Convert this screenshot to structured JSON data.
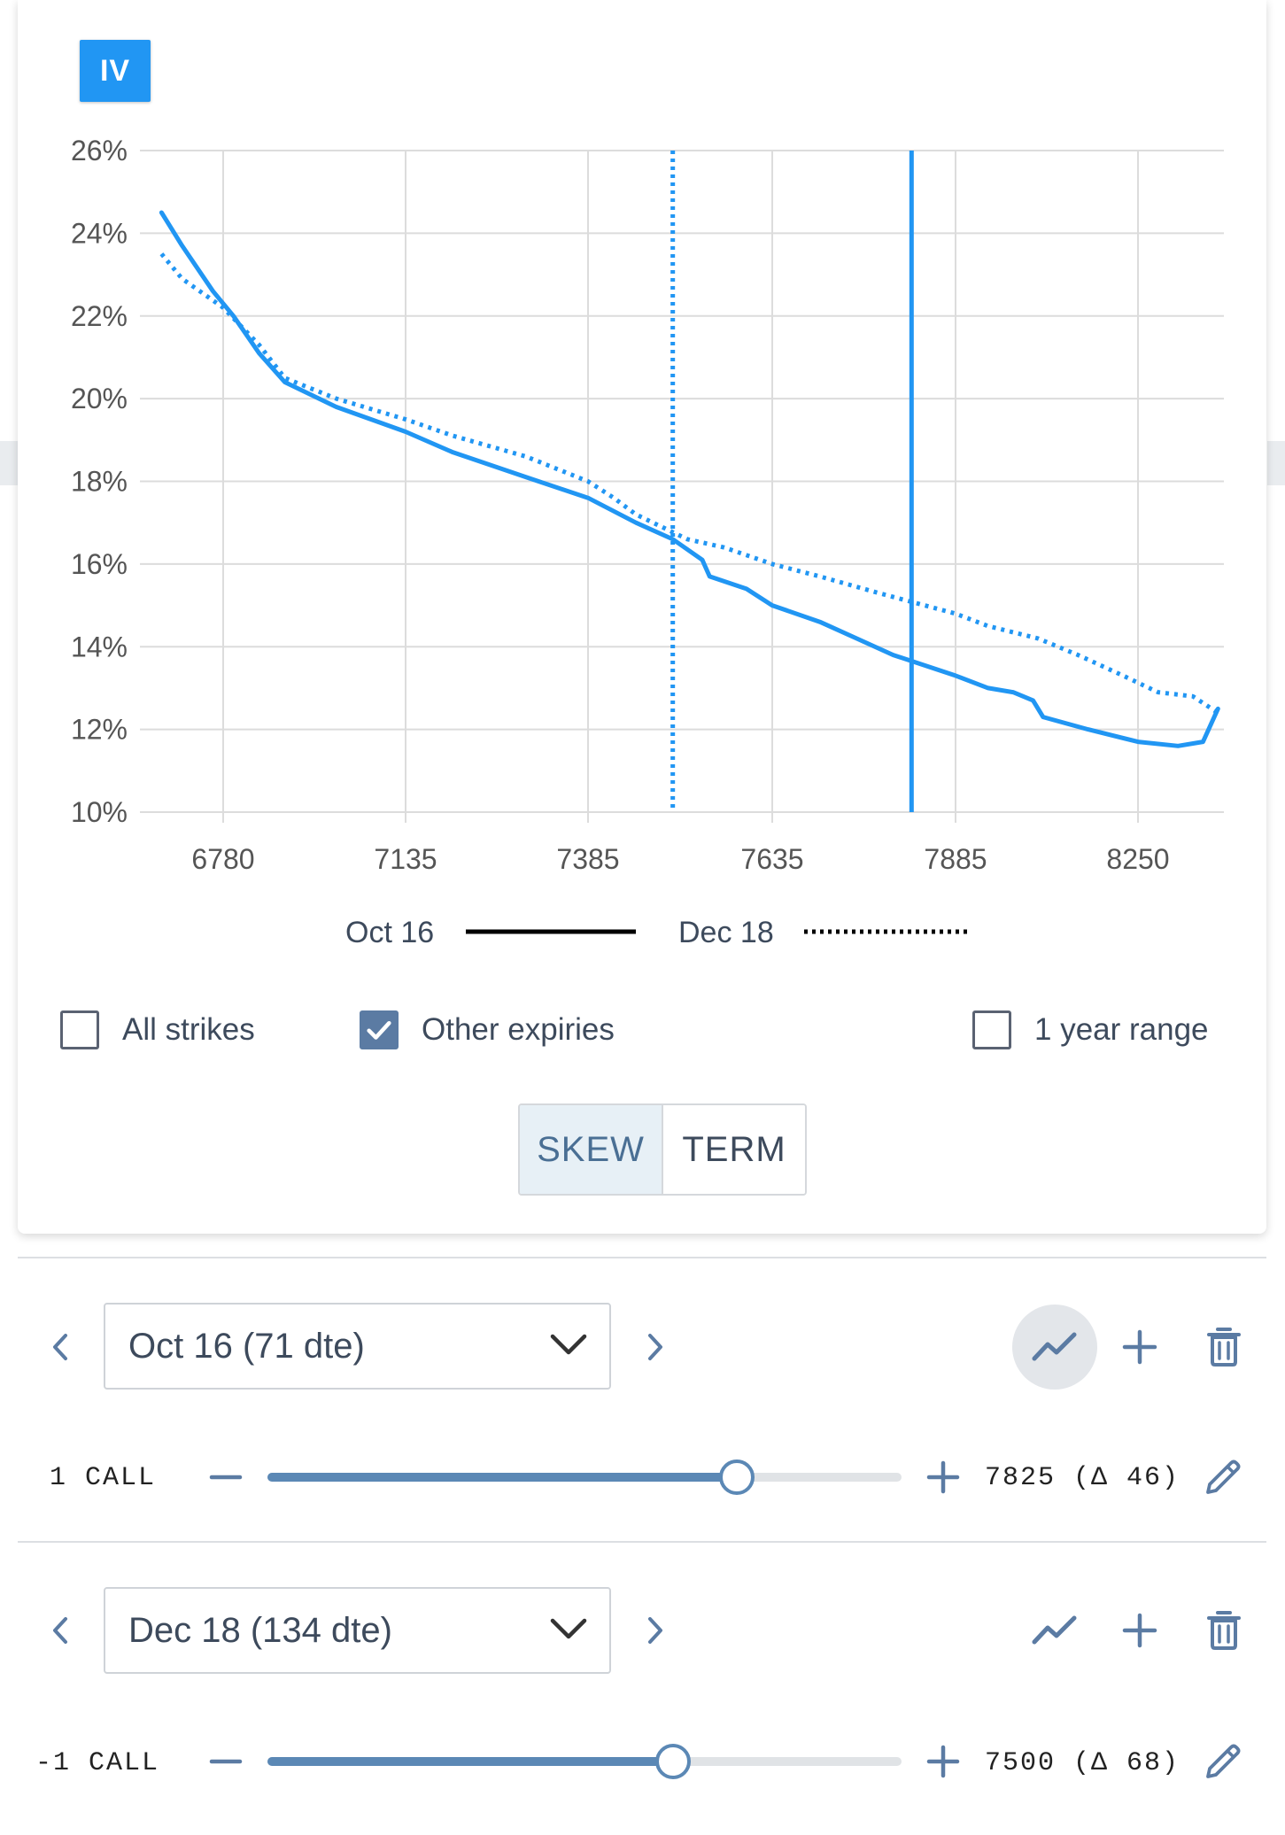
{
  "badge": "IV",
  "chart_data": {
    "type": "line",
    "x_ticks": [
      6780,
      7135,
      7385,
      7635,
      7885,
      8250
    ],
    "y_ticks": [
      10,
      12,
      14,
      16,
      18,
      20,
      22,
      24,
      26
    ],
    "y_tick_labels": [
      "10%",
      "12%",
      "14%",
      "16%",
      "18%",
      "20%",
      "22%",
      "24%",
      "26%"
    ],
    "ylim": [
      10,
      26
    ],
    "grid": true,
    "legend_position": "bottom-center",
    "series": [
      {
        "name": "Oct 16",
        "style": "solid",
        "color": "#2196f3",
        "points": [
          [
            6660,
            24.5
          ],
          [
            6700,
            23.7
          ],
          [
            6760,
            22.6
          ],
          [
            6800,
            22.0
          ],
          [
            6850,
            21.1
          ],
          [
            6900,
            20.4
          ],
          [
            7000,
            19.8
          ],
          [
            7135,
            19.2
          ],
          [
            7200,
            18.7
          ],
          [
            7300,
            18.1
          ],
          [
            7385,
            17.6
          ],
          [
            7450,
            17.0
          ],
          [
            7500,
            16.6
          ],
          [
            7540,
            16.1
          ],
          [
            7550,
            15.7
          ],
          [
            7600,
            15.4
          ],
          [
            7635,
            15.0
          ],
          [
            7700,
            14.6
          ],
          [
            7750,
            14.2
          ],
          [
            7800,
            13.8
          ],
          [
            7885,
            13.3
          ],
          [
            7950,
            13.0
          ],
          [
            8000,
            12.9
          ],
          [
            8040,
            12.7
          ],
          [
            8060,
            12.3
          ],
          [
            8150,
            12.0
          ],
          [
            8250,
            11.7
          ],
          [
            8330,
            11.6
          ],
          [
            8380,
            11.7
          ],
          [
            8410,
            12.5
          ]
        ]
      },
      {
        "name": "Dec 18",
        "style": "dotted",
        "color": "#2196f3",
        "points": [
          [
            6660,
            23.5
          ],
          [
            6700,
            22.9
          ],
          [
            6780,
            22.2
          ],
          [
            6850,
            21.3
          ],
          [
            6900,
            20.5
          ],
          [
            7000,
            20.0
          ],
          [
            7135,
            19.5
          ],
          [
            7200,
            19.1
          ],
          [
            7300,
            18.6
          ],
          [
            7385,
            18.0
          ],
          [
            7420,
            17.6
          ],
          [
            7450,
            17.2
          ],
          [
            7520,
            16.6
          ],
          [
            7570,
            16.4
          ],
          [
            7635,
            16.0
          ],
          [
            7700,
            15.7
          ],
          [
            7780,
            15.3
          ],
          [
            7885,
            14.8
          ],
          [
            7950,
            14.5
          ],
          [
            8050,
            14.2
          ],
          [
            8130,
            13.8
          ],
          [
            8220,
            13.3
          ],
          [
            8290,
            12.9
          ],
          [
            8360,
            12.8
          ],
          [
            8410,
            12.4
          ]
        ]
      }
    ],
    "vertical_markers": [
      {
        "x": 7500,
        "style": "dotted",
        "color": "#2196f3"
      },
      {
        "x": 7825,
        "style": "solid",
        "color": "#2196f3"
      }
    ]
  },
  "legend": [
    {
      "label": "Oct 16",
      "style": "solid"
    },
    {
      "label": "Dec 18",
      "style": "dotted"
    }
  ],
  "options": {
    "all_strikes": {
      "label": "All strikes",
      "checked": false
    },
    "other_expiries": {
      "label": "Other expiries",
      "checked": true
    },
    "year_range": {
      "label": "1 year range",
      "checked": false
    }
  },
  "view_toggle": {
    "skew": "SKEW",
    "term": "TERM",
    "active": "skew"
  },
  "legs": [
    {
      "expiry": "Oct 16 (71 dte)",
      "position": "1 CALL",
      "strike_text": "7825 (Δ 46)",
      "slider_fraction": 0.74,
      "chart_active": true
    },
    {
      "expiry": "Dec 18 (134 dte)",
      "position": "-1 CALL",
      "strike_text": "7500 (Δ 68)",
      "slider_fraction": 0.64,
      "chart_active": false
    }
  ]
}
